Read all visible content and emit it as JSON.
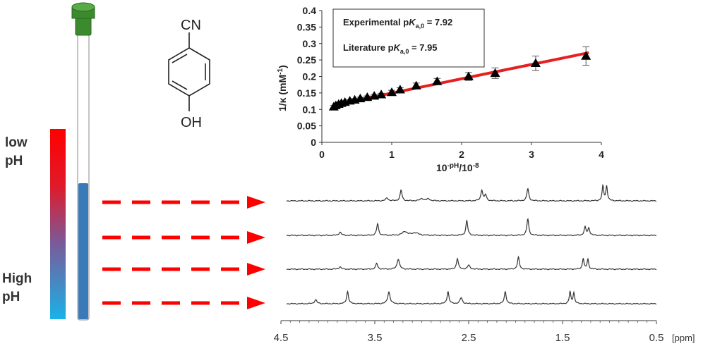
{
  "colors": {
    "red": "#ff0000",
    "blue": "#3a7ab8",
    "cyan": "#19b2e8",
    "fit_line": "#e6201f",
    "cap_green": "#3c8a2e",
    "spectrum": "#333333"
  },
  "ph_labels": {
    "low": [
      "low",
      "pH"
    ],
    "high": [
      "High",
      "pH"
    ]
  },
  "molecule": {
    "top_group": "CN",
    "bottom_group": "OH"
  },
  "chart_data": {
    "type": "scatter",
    "xlabel_base": "10",
    "xlabel_sup": "-pH",
    "xlabel_mid": "/10",
    "xlabel_sup2": "-8",
    "ylabel_main": "1/κ (mM",
    "ylabel_sup": "-1",
    "ylabel_end": ")",
    "xlim": [
      0,
      4
    ],
    "ylim": [
      0,
      0.4
    ],
    "x_ticks": [
      "0",
      "1",
      "2",
      "3",
      "4"
    ],
    "y_ticks": [
      "0",
      "0.05",
      "0.1",
      "0.15",
      "0.2",
      "0.25",
      "0.3",
      "0.35",
      "0.4"
    ],
    "x": [
      0.17,
      0.2,
      0.24,
      0.28,
      0.33,
      0.4,
      0.47,
      0.55,
      0.65,
      0.75,
      0.85,
      1.0,
      1.12,
      1.35,
      1.65,
      2.1,
      2.48,
      3.06,
      3.78
    ],
    "y": [
      0.108,
      0.112,
      0.116,
      0.119,
      0.122,
      0.126,
      0.129,
      0.133,
      0.137,
      0.141,
      0.145,
      0.152,
      0.16,
      0.172,
      0.185,
      0.2,
      0.21,
      0.24,
      0.262
    ],
    "err": [
      0.004,
      0.004,
      0.004,
      0.004,
      0.004,
      0.004,
      0.004,
      0.004,
      0.004,
      0.004,
      0.004,
      0.006,
      0.006,
      0.008,
      0.009,
      0.012,
      0.016,
      0.022,
      0.028
    ],
    "fit": {
      "x0": 0.16,
      "y0": 0.113,
      "x1": 3.82,
      "y1": 0.272
    },
    "legend": {
      "exp_prefix": "Experimental p",
      "exp_K": "K",
      "exp_sub": "a,0",
      "exp_value": " = 7.92",
      "lit_prefix": "Literature p",
      "lit_K": "K",
      "lit_sub": "a,0",
      "lit_value": " = 7.95"
    }
  },
  "spectra": {
    "ppm_ticks": [
      "4.5",
      "3.5",
      "2.5",
      "1.5",
      "0.5"
    ],
    "ppm_unit": "[ppm]",
    "ppm_range": [
      4.5,
      0.5
    ],
    "traces": [
      {
        "peaks": [
          [
            3.37,
            0.15,
            0.015
          ],
          [
            3.22,
            0.55,
            0.012
          ],
          [
            3.0,
            0.12,
            0.02
          ],
          [
            2.93,
            0.1,
            0.02
          ],
          [
            2.36,
            0.55,
            0.012
          ],
          [
            2.32,
            0.3,
            0.012
          ],
          [
            1.87,
            0.62,
            0.012
          ],
          [
            1.07,
            0.75,
            0.01
          ],
          [
            1.03,
            0.75,
            0.01
          ]
        ]
      },
      {
        "peaks": [
          [
            3.87,
            0.15,
            0.015
          ],
          [
            3.47,
            0.55,
            0.012
          ],
          [
            3.18,
            0.18,
            0.03
          ],
          [
            3.07,
            0.12,
            0.04
          ],
          [
            2.52,
            0.7,
            0.012
          ],
          [
            1.87,
            0.78,
            0.012
          ],
          [
            1.26,
            0.38,
            0.012
          ],
          [
            1.22,
            0.34,
            0.012
          ]
        ]
      },
      {
        "peaks": [
          [
            3.87,
            0.12,
            0.015
          ],
          [
            3.48,
            0.3,
            0.012
          ],
          [
            3.25,
            0.52,
            0.015
          ],
          [
            2.62,
            0.55,
            0.012
          ],
          [
            2.5,
            0.2,
            0.015
          ],
          [
            1.97,
            0.6,
            0.012
          ],
          [
            1.28,
            0.55,
            0.01
          ],
          [
            1.23,
            0.5,
            0.01
          ]
        ]
      },
      {
        "peaks": [
          [
            4.13,
            0.2,
            0.015
          ],
          [
            3.79,
            0.62,
            0.012
          ],
          [
            3.35,
            0.6,
            0.015
          ],
          [
            2.72,
            0.62,
            0.012
          ],
          [
            2.58,
            0.3,
            0.015
          ],
          [
            2.11,
            0.62,
            0.012
          ],
          [
            1.42,
            0.6,
            0.01
          ],
          [
            1.38,
            0.55,
            0.01
          ]
        ]
      }
    ]
  }
}
